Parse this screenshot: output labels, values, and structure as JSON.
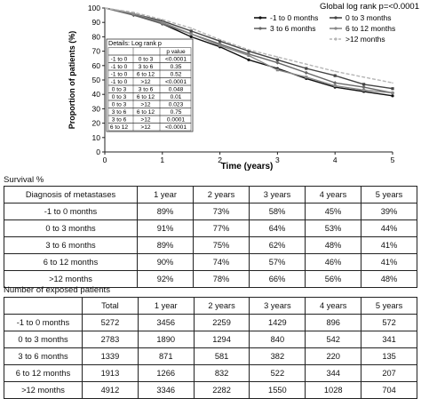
{
  "chart_data": {
    "type": "line",
    "ylabel": "Proportion of patients (%)",
    "xlabel": "Time (years)",
    "xlim": [
      0,
      5
    ],
    "ylim": [
      0,
      100
    ],
    "xticks": [
      "0",
      "1",
      "2",
      "3",
      "4",
      "5"
    ],
    "yticks": [
      "0",
      "10",
      "20",
      "30",
      "40",
      "50",
      "60",
      "70",
      "80",
      "90",
      "100"
    ],
    "annotation": "Global log rank p=<0.0001",
    "legend": [
      "-1 to 0 months",
      "0 to 3 months",
      "3 to 6 months",
      "6 to 12 months",
      ">12 months"
    ],
    "series": [
      {
        "name": "-1 to 0 months",
        "color": "#111111",
        "x": [
          0,
          0.5,
          1,
          1.5,
          2,
          2.5,
          3,
          3.5,
          4,
          4.5,
          5
        ],
        "y": [
          100,
          96,
          89,
          80,
          73,
          64,
          58,
          51,
          45,
          42,
          39
        ]
      },
      {
        "name": "0 to 3 months",
        "color": "#444444",
        "x": [
          0,
          0.5,
          1,
          1.5,
          2,
          2.5,
          3,
          3.5,
          4,
          4.5,
          5
        ],
        "y": [
          100,
          96,
          91,
          84,
          77,
          70,
          64,
          58,
          53,
          47,
          44
        ]
      },
      {
        "name": "3 to 6 months",
        "color": "#666666",
        "x": [
          0,
          0.5,
          1,
          1.5,
          2,
          2.5,
          3,
          3.5,
          4,
          4.5,
          5
        ],
        "y": [
          100,
          95,
          89,
          82,
          75,
          68,
          62,
          55,
          48,
          45,
          41
        ]
      },
      {
        "name": "6 to 12 months",
        "color": "#888888",
        "x": [
          0,
          0.5,
          1,
          1.5,
          2,
          2.5,
          3,
          3.5,
          4,
          4.5,
          5
        ],
        "y": [
          100,
          96,
          90,
          82,
          74,
          67,
          57,
          52,
          46,
          43,
          41
        ]
      },
      {
        "name": ">12 months",
        "color": "#b5b5b5",
        "x": [
          0,
          0.5,
          1,
          1.5,
          2,
          2.5,
          3,
          3.5,
          4,
          4.5,
          5
        ],
        "y": [
          100,
          97,
          92,
          86,
          78,
          71,
          66,
          61,
          56,
          52,
          48
        ]
      }
    ],
    "details_title": "Details: Log rank p",
    "details_header": [
      "",
      "",
      "p value"
    ],
    "details_rows": [
      [
        "-1 to 0",
        "0 to 3",
        "<0.0001"
      ],
      [
        "-1 to 0",
        "3 to 6",
        "0.35"
      ],
      [
        "-1 to 0",
        "6 to 12",
        "0.52"
      ],
      [
        "-1 to 0",
        ">12",
        "<0.0001"
      ],
      [
        "0 to 3",
        "3 to 6",
        "0.048"
      ],
      [
        "0 to 3",
        "6 to 12",
        "0.01"
      ],
      [
        "0 to 3",
        ">12",
        "0.023"
      ],
      [
        "3 to 6",
        "6 to 12",
        "0.75"
      ],
      [
        "3 to 6",
        ">12",
        "0.0001"
      ],
      [
        "6 to 12",
        ">12",
        "<0.0001"
      ]
    ]
  },
  "survival": {
    "title": "Survival %",
    "header": [
      "Diagnosis of metastases",
      "1 year",
      "2 years",
      "3 years",
      "4 years",
      "5 years"
    ],
    "rows": [
      [
        "-1 to 0 months",
        "89%",
        "73%",
        "58%",
        "45%",
        "39%"
      ],
      [
        "0 to 3 months",
        "91%",
        "77%",
        "64%",
        "53%",
        "44%"
      ],
      [
        "3 to 6 months",
        "89%",
        "75%",
        "62%",
        "48%",
        "41%"
      ],
      [
        "6 to 12 months",
        "90%",
        "74%",
        "57%",
        "46%",
        "41%"
      ],
      [
        ">12 months",
        "92%",
        "78%",
        "66%",
        "56%",
        "48%"
      ]
    ]
  },
  "exposed": {
    "title": "Number of exposed patients",
    "header": [
      "",
      "Total",
      "1 year",
      "2 years",
      "3 years",
      "4 years",
      "5 years"
    ],
    "rows": [
      [
        "-1 to 0 months",
        "5272",
        "3456",
        "2259",
        "1429",
        "896",
        "572"
      ],
      [
        "0 to 3 months",
        "2783",
        "1890",
        "1294",
        "840",
        "542",
        "341"
      ],
      [
        "3 to 6 months",
        "1339",
        "871",
        "581",
        "382",
        "220",
        "135"
      ],
      [
        "6 to 12 months",
        "1913",
        "1266",
        "832",
        "522",
        "344",
        "207"
      ],
      [
        ">12 months",
        "4912",
        "3346",
        "2282",
        "1550",
        "1028",
        "704"
      ]
    ]
  }
}
